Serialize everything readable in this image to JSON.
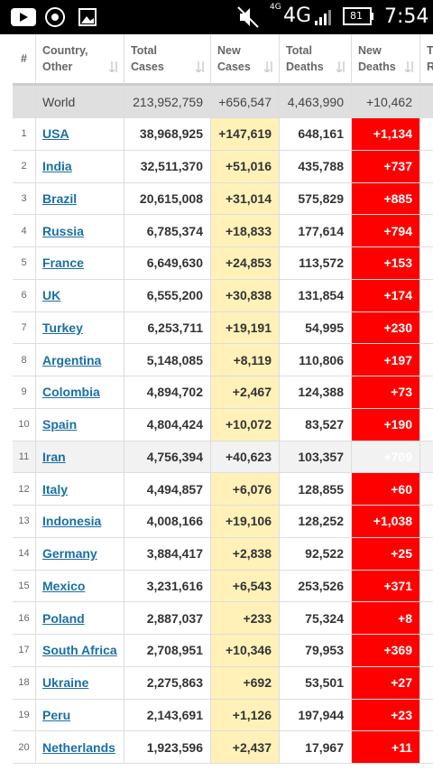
{
  "status_bar": {
    "network_small": "4G",
    "network": "4G",
    "battery": "81",
    "time": "7:54"
  },
  "table": {
    "header": [
      [
        "#"
      ],
      [
        "Country,",
        "Other"
      ],
      [
        "Total",
        "Cases"
      ],
      [
        "New",
        "Cases"
      ],
      [
        "Total",
        "Deaths"
      ],
      [
        "New",
        "Deaths"
      ],
      [
        "T",
        "R"
      ]
    ],
    "world": [
      "World",
      "213,952,759",
      "+656,547",
      "4,463,990",
      "+10,462"
    ],
    "rows": [
      [
        "1",
        "USA",
        "38,968,925",
        "+147,619",
        "648,161",
        "+1,134"
      ],
      [
        "2",
        "India",
        "32,511,370",
        "+51,016",
        "435,788",
        "+737"
      ],
      [
        "3",
        "Brazil",
        "20,615,008",
        "+31,014",
        "575,829",
        "+885"
      ],
      [
        "4",
        "Russia",
        "6,785,374",
        "+18,833",
        "177,614",
        "+794"
      ],
      [
        "5",
        "France",
        "6,649,630",
        "+24,853",
        "113,572",
        "+153"
      ],
      [
        "6",
        "UK",
        "6,555,200",
        "+30,838",
        "131,854",
        "+174"
      ],
      [
        "7",
        "Turkey",
        "6,253,711",
        "+19,191",
        "54,995",
        "+230"
      ],
      [
        "8",
        "Argentina",
        "5,148,085",
        "+8,119",
        "110,806",
        "+197"
      ],
      [
        "9",
        "Colombia",
        "4,894,702",
        "+2,467",
        "124,388",
        "+73"
      ],
      [
        "10",
        "Spain",
        "4,804,424",
        "+10,072",
        "83,527",
        "+190"
      ],
      [
        "11",
        "Iran",
        "4,756,394",
        "+40,623",
        "103,357",
        "+709"
      ],
      [
        "12",
        "Italy",
        "4,494,857",
        "+6,076",
        "128,855",
        "+60"
      ],
      [
        "13",
        "Indonesia",
        "4,008,166",
        "+19,106",
        "128,252",
        "+1,038"
      ],
      [
        "14",
        "Germany",
        "3,884,417",
        "+2,838",
        "92,522",
        "+25"
      ],
      [
        "15",
        "Mexico",
        "3,231,616",
        "+6,543",
        "253,526",
        "+371"
      ],
      [
        "16",
        "Poland",
        "2,887,037",
        "+233",
        "75,324",
        "+8"
      ],
      [
        "17",
        "South Africa",
        "2,708,951",
        "+10,346",
        "79,953",
        "+369"
      ],
      [
        "18",
        "Ukraine",
        "2,275,863",
        "+692",
        "53,501",
        "+27"
      ],
      [
        "19",
        "Peru",
        "2,143,691",
        "+1,126",
        "197,944",
        "+23"
      ],
      [
        "20",
        "Netherlands",
        "1,923,596",
        "+2,437",
        "17,967",
        "+11"
      ]
    ]
  }
}
